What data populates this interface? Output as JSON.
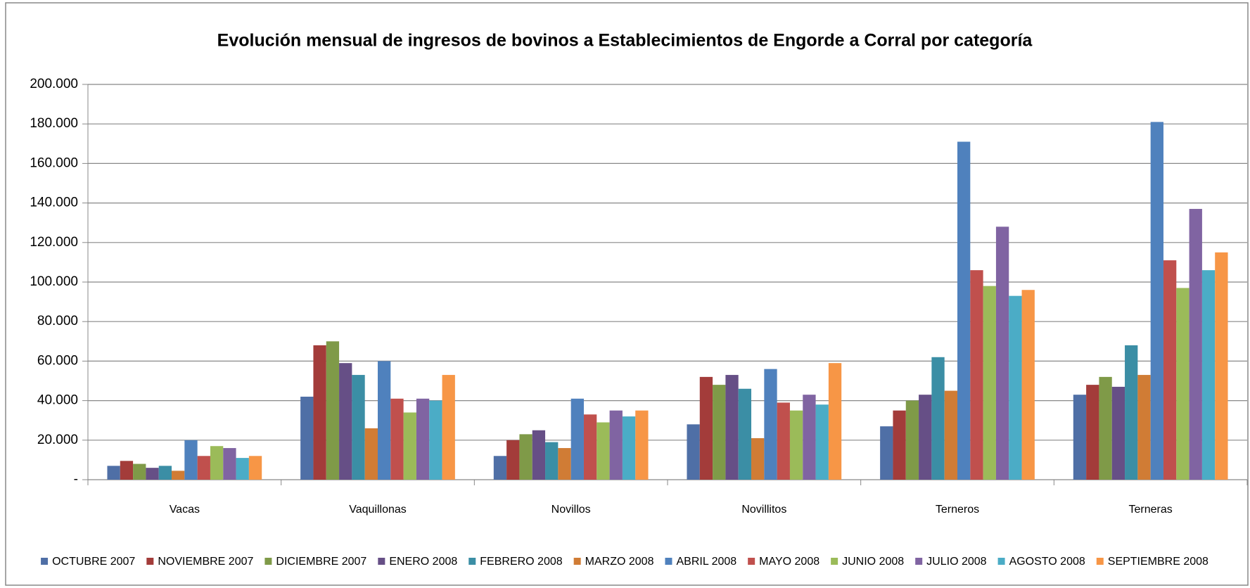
{
  "chart_data": {
    "type": "bar",
    "title": "Evolución mensual de ingresos de bovinos a Establecimientos de Engorde a Corral por categoría",
    "categories": [
      "Vacas",
      "Vaquillonas",
      "Novillos",
      "Novillitos",
      "Terneros",
      "Terneras"
    ],
    "series": [
      {
        "name": "OCTUBRE 2007",
        "color": "#4f6fa6",
        "values": [
          7000,
          42000,
          12000,
          28000,
          27000,
          43000
        ]
      },
      {
        "name": "NOVIEMBRE 2007",
        "color": "#a33c3a",
        "values": [
          9500,
          68000,
          20000,
          52000,
          35000,
          48000
        ]
      },
      {
        "name": "DICIEMBRE 2007",
        "color": "#7f9a48",
        "values": [
          8000,
          70000,
          23000,
          48000,
          40000,
          52000
        ]
      },
      {
        "name": "ENERO 2008",
        "color": "#664f86",
        "values": [
          6000,
          59000,
          25000,
          53000,
          43000,
          47000
        ]
      },
      {
        "name": "FEBRERO 2008",
        "color": "#3b8ea5",
        "values": [
          7000,
          53000,
          19000,
          46000,
          62000,
          68000
        ]
      },
      {
        "name": "MARZO 2008",
        "color": "#d07c35",
        "values": [
          4500,
          26000,
          16000,
          21000,
          45000,
          53000
        ]
      },
      {
        "name": "ABRIL 2008",
        "color": "#4f81bd",
        "values": [
          20000,
          60000,
          41000,
          56000,
          171000,
          181000
        ]
      },
      {
        "name": "MAYO 2008",
        "color": "#c0504d",
        "values": [
          12000,
          41000,
          33000,
          39000,
          106000,
          111000
        ]
      },
      {
        "name": "JUNIO 2008",
        "color": "#9bbb59",
        "values": [
          17000,
          34000,
          29000,
          35000,
          98000,
          97000
        ]
      },
      {
        "name": "JULIO 2008",
        "color": "#8064a2",
        "values": [
          16000,
          41000,
          35000,
          43000,
          128000,
          137000
        ]
      },
      {
        "name": "AGOSTO 2008",
        "color": "#4bacc6",
        "values": [
          11000,
          40000,
          32000,
          38000,
          93000,
          106000
        ]
      },
      {
        "name": "SEPTIEMBRE 2008",
        "color": "#f79646",
        "values": [
          12000,
          53000,
          35000,
          59000,
          96000,
          115000
        ]
      }
    ],
    "ylim": [
      0,
      200000
    ],
    "yticks": [
      {
        "value": 0,
        "label": "-"
      },
      {
        "value": 20000,
        "label": "20.000"
      },
      {
        "value": 40000,
        "label": "40.000"
      },
      {
        "value": 60000,
        "label": "60.000"
      },
      {
        "value": 80000,
        "label": "80.000"
      },
      {
        "value": 100000,
        "label": "100.000"
      },
      {
        "value": 120000,
        "label": "120.000"
      },
      {
        "value": 140000,
        "label": "140.000"
      },
      {
        "value": 160000,
        "label": "160.000"
      },
      {
        "value": 180000,
        "label": "180.000"
      },
      {
        "value": 200000,
        "label": "200.000"
      }
    ],
    "grid": true,
    "legend": "bottom"
  }
}
